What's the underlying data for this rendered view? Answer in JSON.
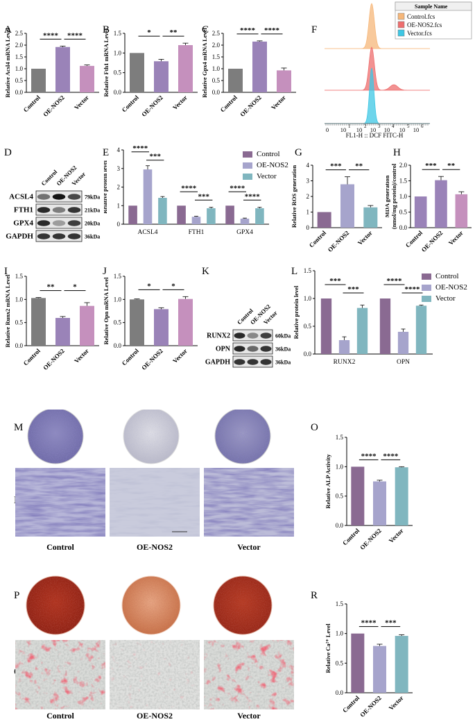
{
  "colors": {
    "control": "#8a6a92",
    "oe": "#a6a4cc",
    "vector": "#80b6bf",
    "gray": "#7d7d7d",
    "purple": "#9a83b8",
    "pink": "#c590bd",
    "alp_stain": "#3a3580",
    "ars_stain": "#a32a1f"
  },
  "letters": {
    "A": "A",
    "B": "B",
    "C": "C",
    "D": "D",
    "E": "E",
    "F": "F",
    "G": "G",
    "H": "H",
    "I": "I",
    "J": "J",
    "K": "K",
    "L": "L",
    "M": "M",
    "N": "N",
    "O": "O",
    "P": "P",
    "Q": "Q",
    "R": "R"
  },
  "groups": [
    "Control",
    "OE-NOS2",
    "Vector"
  ],
  "chart_data": [
    {
      "id": "A",
      "type": "bar",
      "categories": [
        "Control",
        "OE-NOS2",
        "Vector"
      ],
      "values": [
        1.0,
        1.92,
        1.12
      ],
      "errors": [
        0,
        0.04,
        0.04
      ],
      "ylabel": "Relative Acsl4 mRNA Level",
      "ylim": [
        0,
        2.5
      ],
      "yticks": [
        0.0,
        0.5,
        1.0,
        1.5,
        2.0,
        2.5
      ],
      "ytick_labels": [
        "0.0",
        "0.5",
        "1.0",
        "1.5",
        "2.0",
        "2.5"
      ],
      "sig": [
        {
          "a": 0,
          "b": 1,
          "label": "****"
        },
        {
          "a": 1,
          "b": 2,
          "label": "****"
        }
      ]
    },
    {
      "id": "B",
      "type": "bar",
      "categories": [
        "Control",
        "OE-NOS2",
        "Vector"
      ],
      "values": [
        1.0,
        0.79,
        1.2
      ],
      "errors": [
        0,
        0.05,
        0.05
      ],
      "ylabel": "Relative Fth1 mRNA Level",
      "ylim": [
        0,
        1.5
      ],
      "yticks": [
        0.0,
        0.5,
        1.0,
        1.5
      ],
      "ytick_labels": [
        "0.0",
        "0.5",
        "1.0",
        "1.5"
      ],
      "sig": [
        {
          "a": 0,
          "b": 1,
          "label": "*"
        },
        {
          "a": 1,
          "b": 2,
          "label": "**"
        }
      ]
    },
    {
      "id": "C",
      "type": "bar",
      "categories": [
        "Control",
        "OE-NOS2",
        "Vector"
      ],
      "values": [
        1.0,
        2.15,
        0.93
      ],
      "errors": [
        0,
        0.03,
        0.1
      ],
      "ylabel": "Relative Gpx4 mRNA Level",
      "ylim": [
        0,
        2.5
      ],
      "yticks": [
        0.0,
        0.5,
        1.0,
        1.5,
        2.0,
        2.5
      ],
      "ytick_labels": [
        "0.0",
        "0.5",
        "1.0",
        "1.5",
        "2.0",
        "2.5"
      ],
      "sig": [
        {
          "a": 0,
          "b": 1,
          "label": "****"
        },
        {
          "a": 1,
          "b": 2,
          "label": "****"
        }
      ]
    },
    {
      "id": "E",
      "type": "bar",
      "categories": [
        "ACSL4",
        "FTH1",
        "GPX4"
      ],
      "series": [
        {
          "name": "Control",
          "values": [
            1.0,
            1.0,
            1.0
          ],
          "errors": [
            0,
            0,
            0
          ]
        },
        {
          "name": "OE-NOS2",
          "values": [
            2.95,
            0.4,
            0.3
          ],
          "errors": [
            0.2,
            0.03,
            0.03
          ]
        },
        {
          "name": "Vector",
          "values": [
            1.42,
            0.86,
            0.86
          ],
          "errors": [
            0.07,
            0.05,
            0.05
          ]
        }
      ],
      "ylabel": "Relative protein level",
      "ylim": [
        0,
        4
      ],
      "yticks": [
        0,
        1,
        2,
        3,
        4
      ],
      "ytick_labels": [
        "0",
        "1",
        "2",
        "3",
        "4"
      ],
      "sig": [
        {
          "g": 0,
          "a": 0,
          "b": 1,
          "label": "****"
        },
        {
          "g": 0,
          "a": 1,
          "b": 2,
          "label": "***"
        },
        {
          "g": 1,
          "a": 0,
          "b": 1,
          "label": "****"
        },
        {
          "g": 1,
          "a": 1,
          "b": 2,
          "label": "***"
        },
        {
          "g": 2,
          "a": 0,
          "b": 1,
          "label": "****"
        },
        {
          "g": 2,
          "a": 1,
          "b": 2,
          "label": "****"
        }
      ]
    },
    {
      "id": "G",
      "type": "bar",
      "categories": [
        "Control",
        "OE-NOS2",
        "Vector"
      ],
      "values": [
        1.0,
        2.78,
        1.3
      ],
      "errors": [
        0,
        0.48,
        0.12
      ],
      "ylabel": "Relative ROS generation",
      "ylim": [
        0,
        4
      ],
      "yticks": [
        0,
        1,
        2,
        3,
        4
      ],
      "ytick_labels": [
        "0",
        "1",
        "2",
        "3",
        "4"
      ],
      "sig": [
        {
          "a": 0,
          "b": 1,
          "label": "***"
        },
        {
          "a": 1,
          "b": 2,
          "label": "**"
        }
      ]
    },
    {
      "id": "H",
      "type": "bar",
      "categories": [
        "Control",
        "OE-NOS2",
        "Vector"
      ],
      "values": [
        1.0,
        1.52,
        1.07
      ],
      "errors": [
        0,
        0.12,
        0.08
      ],
      "ylabel": "MDA generation (nmol/mg protein)/control",
      "ylim": [
        0,
        2.0
      ],
      "yticks": [
        0.0,
        0.5,
        1.0,
        1.5,
        2.0
      ],
      "ytick_labels": [
        "0.0",
        "0.5",
        "1.0",
        "1.5",
        "2.0"
      ],
      "sig": [
        {
          "a": 0,
          "b": 1,
          "label": "***"
        },
        {
          "a": 1,
          "b": 2,
          "label": "**"
        }
      ]
    },
    {
      "id": "I",
      "type": "bar",
      "categories": [
        "Control",
        "OE-NOS2",
        "Vector"
      ],
      "values": [
        1.03,
        0.6,
        0.86
      ],
      "errors": [
        0.01,
        0.03,
        0.07
      ],
      "ylabel": "Relative Runx2 mRNA Level",
      "ylim": [
        0,
        1.5
      ],
      "yticks": [
        0.0,
        0.5,
        1.0,
        1.5
      ],
      "ytick_labels": [
        "0.0",
        "0.5",
        "1.0",
        "1.5"
      ],
      "sig": [
        {
          "a": 0,
          "b": 1,
          "label": "**"
        },
        {
          "a": 1,
          "b": 2,
          "label": "*"
        }
      ]
    },
    {
      "id": "J",
      "type": "bar",
      "categories": [
        "Control",
        "OE-NOS2",
        "Vector"
      ],
      "values": [
        1.0,
        0.79,
        1.01
      ],
      "errors": [
        0.01,
        0.03,
        0.05
      ],
      "ylabel": "Relative Opn mRNA Level",
      "ylim": [
        0,
        1.5
      ],
      "yticks": [
        0.0,
        0.5,
        1.0,
        1.5
      ],
      "ytick_labels": [
        "0.0",
        "0.5",
        "1.0",
        "1.5"
      ],
      "sig": [
        {
          "a": 0,
          "b": 1,
          "label": "*"
        },
        {
          "a": 1,
          "b": 2,
          "label": "*"
        }
      ]
    },
    {
      "id": "L",
      "type": "bar",
      "categories": [
        "RUNX2",
        "OPN"
      ],
      "series": [
        {
          "name": "Control",
          "values": [
            1.0,
            1.0
          ],
          "errors": [
            0,
            0
          ]
        },
        {
          "name": "OE-NOS2",
          "values": [
            0.25,
            0.4
          ],
          "errors": [
            0.06,
            0.05
          ]
        },
        {
          "name": "Vector",
          "values": [
            0.83,
            0.87
          ],
          "errors": [
            0.05,
            0.01
          ]
        }
      ],
      "ylabel": "Relative protein  level",
      "ylim": [
        0,
        1.5
      ],
      "yticks": [
        0.0,
        0.5,
        1.0,
        1.5
      ],
      "ytick_labels": [
        "0.0",
        "0.5",
        "1.0",
        "1.5"
      ],
      "sig": [
        {
          "g": 0,
          "a": 0,
          "b": 1,
          "label": "***"
        },
        {
          "g": 0,
          "a": 1,
          "b": 2,
          "label": "***"
        },
        {
          "g": 1,
          "a": 0,
          "b": 1,
          "label": "****"
        },
        {
          "g": 1,
          "a": 1,
          "b": 2,
          "label": "****"
        }
      ]
    },
    {
      "id": "O",
      "type": "bar",
      "categories": [
        "Control",
        "OE-NOS2",
        "Vector"
      ],
      "values": [
        1.0,
        0.75,
        0.99
      ],
      "errors": [
        0,
        0.02,
        0.01
      ],
      "ylabel": "Relative ALP Activity",
      "ylim": [
        0,
        1.5
      ],
      "yticks": [
        0.0,
        0.5,
        1.0,
        1.5
      ],
      "ytick_labels": [
        "0.0",
        "0.5",
        "1.0",
        "1.5"
      ],
      "sig": [
        {
          "a": 0,
          "b": 1,
          "label": "****"
        },
        {
          "a": 1,
          "b": 2,
          "label": "****"
        }
      ]
    },
    {
      "id": "R",
      "type": "bar",
      "categories": [
        "Control",
        "OE-NOS2",
        "Vector"
      ],
      "values": [
        1.0,
        0.79,
        0.96
      ],
      "errors": [
        0,
        0.03,
        0.02
      ],
      "ylabel": "Relative Ca²⁺ Level",
      "ylim": [
        0,
        1.5
      ],
      "yticks": [
        0.0,
        0.5,
        1.0,
        1.5
      ],
      "ytick_labels": [
        "0.0",
        "0.5",
        "1.0",
        "1.5"
      ],
      "sig": [
        {
          "a": 0,
          "b": 1,
          "label": "****"
        },
        {
          "a": 1,
          "b": 2,
          "label": "***"
        }
      ]
    }
  ],
  "legend_E": [
    "Control",
    "OE-NOS2",
    "Vector"
  ],
  "legend_L": [
    "Control",
    "OE-NOS2",
    "Vector"
  ],
  "flow": {
    "legend_title": "Sample Name",
    "samples": [
      "Control.fcs",
      "OE-NOS2.fcs",
      "Vector.fcs"
    ],
    "sample_colors": [
      "#f6b77a",
      "#ee6e6e",
      "#3ec7e4"
    ],
    "xlabel": "FL1-H :: DCF FITC-H",
    "xticks": [
      "0",
      "10",
      "10",
      "10",
      "10",
      "10",
      "10"
    ],
    "xtick_exp": [
      "",
      "1",
      "2",
      "3",
      "4",
      "5",
      "6"
    ]
  },
  "blot_D": {
    "lanes": [
      "Control",
      "OE-NOS2",
      "Vector"
    ],
    "proteins": [
      "ACSL4",
      "FTH1",
      "GPX4",
      "GAPDH"
    ],
    "sizes": [
      "79kDa",
      "21kDa",
      "20kDa",
      "36kDa"
    ],
    "intensity": [
      [
        0.55,
        1.0,
        0.75
      ],
      [
        0.9,
        0.5,
        0.85
      ],
      [
        0.9,
        0.35,
        0.8
      ],
      [
        0.85,
        0.85,
        0.85
      ]
    ]
  },
  "blot_K": {
    "lanes": [
      "Control",
      "OE-NOS2",
      "Vector"
    ],
    "proteins": [
      "RUNX2",
      "OPN",
      "GAPDH"
    ],
    "sizes": [
      "60kDa",
      "36kDa",
      "36kDa"
    ],
    "intensity": [
      [
        0.9,
        0.45,
        0.8
      ],
      [
        0.9,
        0.6,
        0.85
      ],
      [
        0.85,
        0.85,
        0.85
      ]
    ]
  },
  "image_labels": {
    "N": [
      "Control",
      "OE-NOS2",
      "Vector"
    ],
    "Q": [
      "Control",
      "OE-NOS2",
      "Vector"
    ]
  }
}
